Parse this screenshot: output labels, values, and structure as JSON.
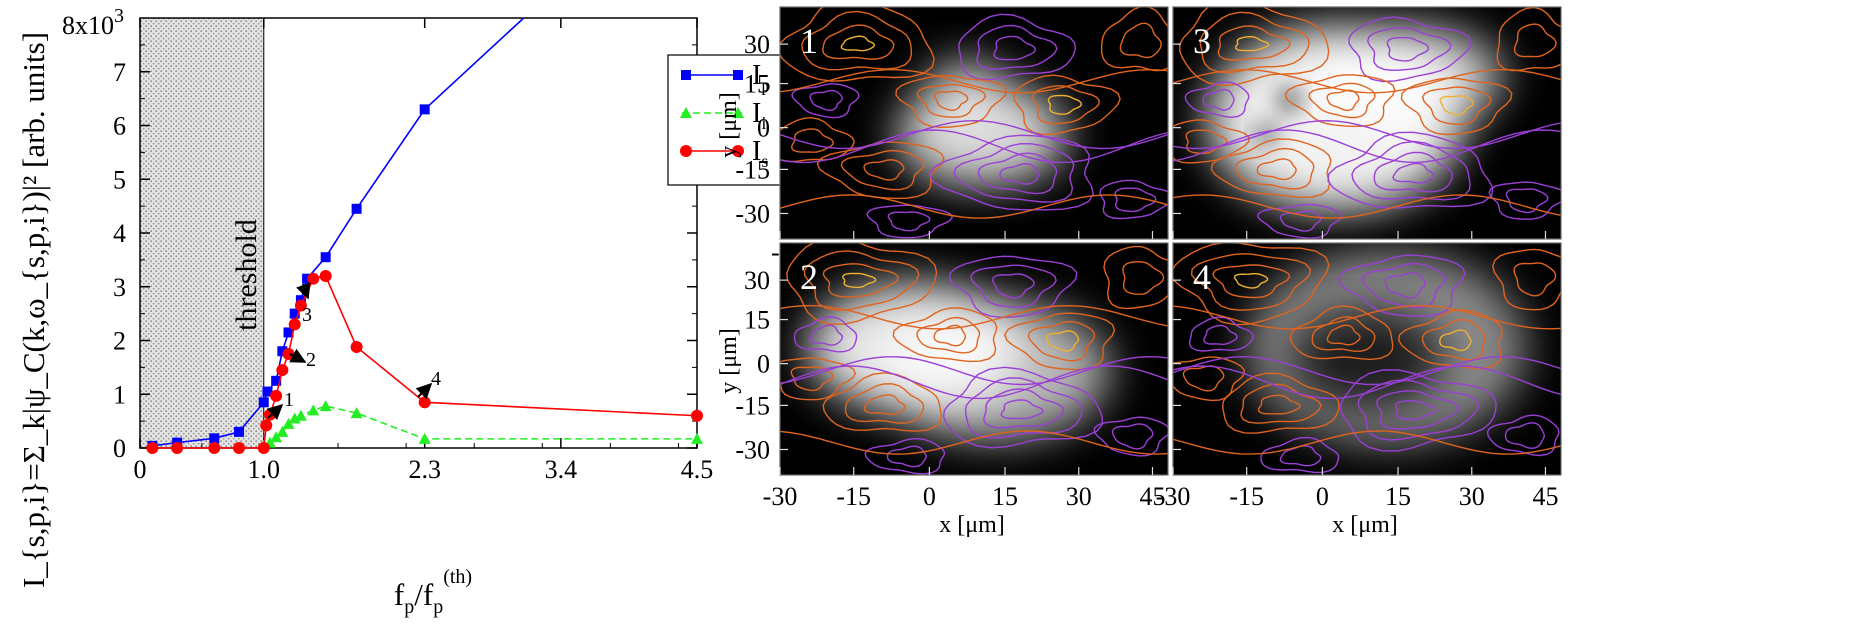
{
  "chart_data": [
    {
      "type": "line",
      "x_axis": {
        "label_main": "f",
        "label_sub": "p",
        "label_slash": "/f",
        "label_sub2": "p",
        "label_sup2": "(th)",
        "range": [
          0,
          4.5
        ],
        "ticks": [
          {
            "value": 0,
            "label": "0"
          },
          {
            "value": 1.0,
            "label": "1.0"
          },
          {
            "value": 2.3,
            "label": "2.3"
          },
          {
            "value": 3.4,
            "label": "3.4"
          },
          {
            "value": 4.5,
            "label": "4.5"
          }
        ]
      },
      "y_axis": {
        "label_text": "I_{s,p,i}=Σ_k|ψ_C(k,ω_{s,p,i})|² [arb. units]",
        "range": [
          0,
          8
        ],
        "ticks": [
          {
            "value": 0,
            "label": "0"
          },
          {
            "value": 1,
            "label": "1"
          },
          {
            "value": 2,
            "label": "2"
          },
          {
            "value": 3,
            "label": "3"
          },
          {
            "value": 4,
            "label": "4"
          },
          {
            "value": 5,
            "label": "5"
          },
          {
            "value": 6,
            "label": "6"
          },
          {
            "value": 7,
            "label": "7"
          }
        ],
        "top_label_base": "8x10",
        "top_label_exp": "3"
      },
      "shaded_region": {
        "x_from": 0,
        "x_to": 1.0,
        "label": "threshold"
      },
      "series": [
        {
          "name": "I_p",
          "legend_main": "I",
          "legend_sub": "p",
          "color": "#0000ff",
          "marker": "square",
          "dash": "solid",
          "x": [
            0.1,
            0.3,
            0.6,
            0.8,
            1.0,
            1.03,
            1.1,
            1.15,
            1.2,
            1.25,
            1.3,
            1.35,
            1.5,
            1.75,
            2.3,
            3.1
          ],
          "y": [
            0.04,
            0.1,
            0.18,
            0.3,
            0.85,
            1.05,
            1.25,
            1.8,
            2.15,
            2.5,
            2.75,
            3.15,
            3.55,
            4.45,
            6.3,
            8.0
          ]
        },
        {
          "name": "I_i",
          "legend_main": "I",
          "legend_sub": "i",
          "color": "#22ee22",
          "marker": "triangle",
          "dash": "dashed",
          "x": [
            1.0,
            1.05,
            1.1,
            1.15,
            1.2,
            1.25,
            1.3,
            1.4,
            1.5,
            1.75,
            2.3,
            4.5
          ],
          "y": [
            0.05,
            0.1,
            0.2,
            0.3,
            0.45,
            0.55,
            0.6,
            0.7,
            0.78,
            0.65,
            0.17,
            0.17
          ]
        },
        {
          "name": "I_s",
          "legend_main": "I",
          "legend_sub": "s",
          "color": "#ff0000",
          "marker": "circle",
          "dash": "solid",
          "x": [
            0.1,
            0.3,
            0.6,
            0.8,
            1.0,
            1.02,
            1.05,
            1.1,
            1.15,
            1.2,
            1.25,
            1.3,
            1.4,
            1.5,
            1.75,
            2.3,
            4.5
          ],
          "y": [
            0.0,
            0.0,
            0.0,
            0.0,
            0.0,
            0.42,
            0.62,
            0.97,
            1.45,
            1.75,
            2.3,
            2.65,
            3.15,
            3.2,
            1.88,
            0.85,
            0.6
          ]
        }
      ],
      "annotations": [
        {
          "label": "1",
          "x": 1.05,
          "y": 0.75
        },
        {
          "label": "2",
          "x": 1.27,
          "y": 1.7
        },
        {
          "label": "3",
          "x": 1.35,
          "y": 3.0
        },
        {
          "label": "4",
          "x": 2.3,
          "y": 0.95
        }
      ]
    },
    {
      "type": "heatmap",
      "description_ticks": true,
      "x_axis_label": "x [μm]",
      "y_axis_label": "y [μm]",
      "x_ticks": [
        "-30",
        "-15",
        "0",
        "15",
        "30",
        "45"
      ],
      "y_ticks": [
        "30",
        "15",
        "0",
        "-15",
        "-30"
      ],
      "panels": [
        {
          "label": "1",
          "position": "top-left"
        },
        {
          "label": "3",
          "position": "top-right"
        },
        {
          "label": "2",
          "position": "bottom-left"
        },
        {
          "label": "4",
          "position": "bottom-right"
        }
      ],
      "stray_tick_labels": [
        "-3",
        "-30",
        "-30"
      ]
    }
  ],
  "colors": {
    "contour_purple": "#9b3fd6",
    "contour_orange": "#e0641e",
    "contour_yellow": "#f0b030"
  }
}
